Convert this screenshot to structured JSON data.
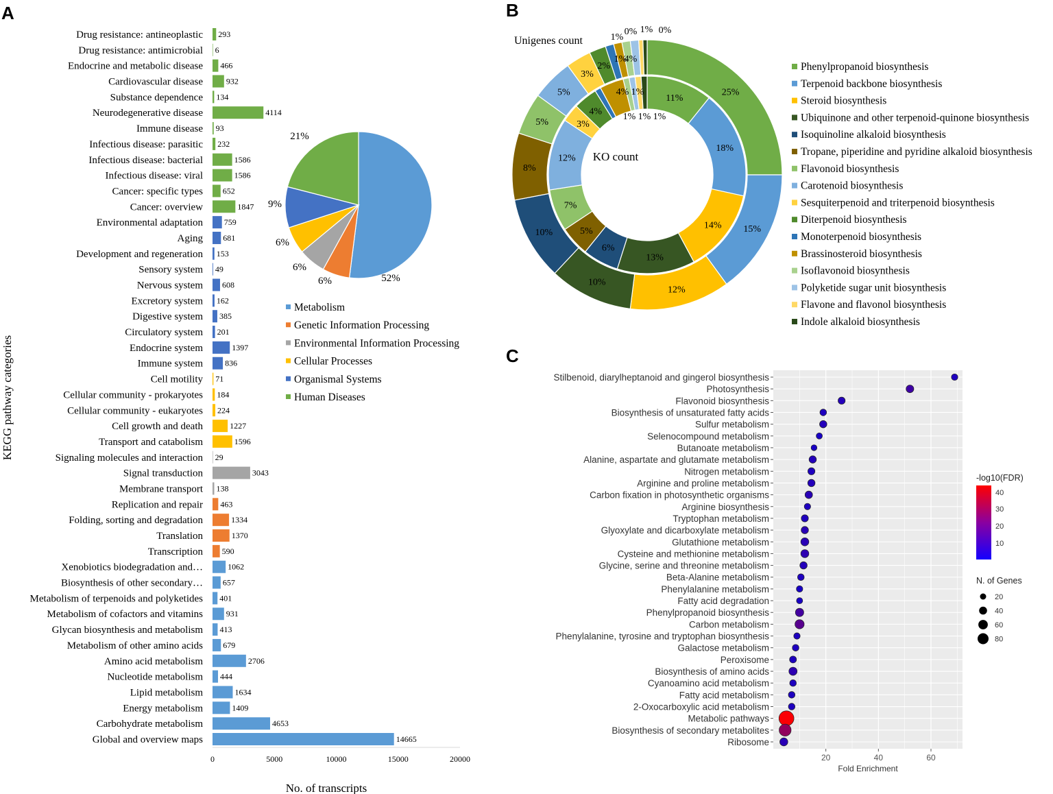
{
  "panel_labels": {
    "a": "A",
    "b": "B",
    "c": "C"
  },
  "chart_data": [
    {
      "type": "bar",
      "panel": "A",
      "orientation": "horizontal",
      "xlabel": "No. of transcripts",
      "ylabel": "KEGG pathway categories",
      "xlim": [
        0,
        20000
      ],
      "xticks": [
        "0",
        "5000",
        "10000",
        "15000",
        "20000"
      ],
      "categories": [
        {
          "label": "Drug resistance: antineoplastic",
          "value": 293,
          "group": "hd"
        },
        {
          "label": "Drug resistance: antimicrobial",
          "value": 6,
          "group": "hd"
        },
        {
          "label": "Endocrine and metabolic disease",
          "value": 466,
          "group": "hd"
        },
        {
          "label": "Cardiovascular disease",
          "value": 932,
          "group": "hd"
        },
        {
          "label": "Substance dependence",
          "value": 134,
          "group": "hd"
        },
        {
          "label": "Neurodegenerative disease",
          "value": 4114,
          "group": "hd"
        },
        {
          "label": "Immune disease",
          "value": 93,
          "group": "hd"
        },
        {
          "label": "Infectious disease: parasitic",
          "value": 232,
          "group": "hd"
        },
        {
          "label": "Infectious disease: bacterial",
          "value": 1586,
          "group": "hd"
        },
        {
          "label": "Infectious disease: viral",
          "value": 1586,
          "group": "hd"
        },
        {
          "label": "Cancer: specific types",
          "value": 652,
          "group": "hd"
        },
        {
          "label": "Cancer: overview",
          "value": 1847,
          "group": "hd"
        },
        {
          "label": "Environmental adaptation",
          "value": 759,
          "group": "os"
        },
        {
          "label": "Aging",
          "value": 681,
          "group": "os"
        },
        {
          "label": "Development and regeneration",
          "value": 153,
          "group": "os"
        },
        {
          "label": "Sensory system",
          "value": 49,
          "group": "os"
        },
        {
          "label": "Nervous system",
          "value": 608,
          "group": "os"
        },
        {
          "label": "Excretory system",
          "value": 162,
          "group": "os"
        },
        {
          "label": "Digestive system",
          "value": 385,
          "group": "os"
        },
        {
          "label": "Circulatory system",
          "value": 201,
          "group": "os"
        },
        {
          "label": "Endocrine system",
          "value": 1397,
          "group": "os"
        },
        {
          "label": "Immune system",
          "value": 836,
          "group": "os"
        },
        {
          "label": "Cell motility",
          "value": 71,
          "group": "cp"
        },
        {
          "label": "Cellular community - prokaryotes",
          "value": 184,
          "group": "cp"
        },
        {
          "label": "Cellular community - eukaryotes",
          "value": 224,
          "group": "cp"
        },
        {
          "label": "Cell growth and death",
          "value": 1227,
          "group": "cp"
        },
        {
          "label": "Transport and catabolism",
          "value": 1596,
          "group": "cp"
        },
        {
          "label": "Signaling molecules and interaction",
          "value": 29,
          "group": "eip"
        },
        {
          "label": "Signal transduction",
          "value": 3043,
          "group": "eip"
        },
        {
          "label": "Membrane transport",
          "value": 138,
          "group": "eip"
        },
        {
          "label": "Replication and repair",
          "value": 463,
          "group": "gip"
        },
        {
          "label": "Folding, sorting and degradation",
          "value": 1334,
          "group": "gip"
        },
        {
          "label": "Translation",
          "value": 1370,
          "group": "gip"
        },
        {
          "label": "Transcription",
          "value": 590,
          "group": "gip"
        },
        {
          "label": "Xenobiotics biodegradation and…",
          "value": 1062,
          "group": "met"
        },
        {
          "label": "Biosynthesis of other secondary…",
          "value": 657,
          "group": "met"
        },
        {
          "label": "Metabolism of terpenoids and polyketides",
          "value": 401,
          "group": "met"
        },
        {
          "label": "Metabolism of cofactors and vitamins",
          "value": 931,
          "group": "met"
        },
        {
          "label": "Glycan biosynthesis and metabolism",
          "value": 413,
          "group": "met"
        },
        {
          "label": "Metabolism of other amino acids",
          "value": 679,
          "group": "met"
        },
        {
          "label": "Amino acid metabolism",
          "value": 2706,
          "group": "met"
        },
        {
          "label": "Nucleotide metabolism",
          "value": 444,
          "group": "met"
        },
        {
          "label": "Lipid metabolism",
          "value": 1634,
          "group": "met"
        },
        {
          "label": "Energy metabolism",
          "value": 1409,
          "group": "met"
        },
        {
          "label": "Carbohydrate metabolism",
          "value": 4653,
          "group": "met"
        },
        {
          "label": "Global and overview maps",
          "value": 14665,
          "group": "met"
        }
      ],
      "group_colors": {
        "met": "#5b9bd5",
        "gip": "#ed7d31",
        "eip": "#a5a5a5",
        "cp": "#ffc000",
        "os": "#4472c4",
        "hd": "#70ad47"
      }
    },
    {
      "type": "pie",
      "panel": "A-inset",
      "slices": [
        {
          "label": "Metabolism",
          "value": 52,
          "text": "52%",
          "color": "#5b9bd5"
        },
        {
          "label": "Genetic Information Processing",
          "value": 6,
          "text": "6%",
          "color": "#ed7d31"
        },
        {
          "label": "Environmental Information Processing",
          "value": 6,
          "text": "6%",
          "color": "#a5a5a5"
        },
        {
          "label": "Cellular Processes",
          "value": 6,
          "text": "6%",
          "color": "#ffc000"
        },
        {
          "label": "Organismal Systems",
          "value": 9,
          "text": "9%",
          "color": "#4472c4"
        },
        {
          "label": "Human Diseases",
          "value": 21,
          "text": "21%",
          "color": "#70ad47"
        }
      ]
    },
    {
      "type": "pie",
      "subtype": "double-donut",
      "panel": "B",
      "outer_title": "Unigenes count",
      "inner_title": "KO count",
      "legend": [
        {
          "label": "Phenylpropanoid biosynthesis",
          "color": "#70ad47"
        },
        {
          "label": "Terpenoid backbone biosynthesis",
          "color": "#5b9bd5"
        },
        {
          "label": "Steroid biosynthesis",
          "color": "#ffc000"
        },
        {
          "label": "Ubiquinone and other terpenoid-quinone biosynthesis",
          "color": "#375623"
        },
        {
          "label": "Isoquinoline alkaloid biosynthesis",
          "color": "#1f4e79"
        },
        {
          "label": "Tropane, piperidine and pyridine alkaloid biosynthesis",
          "color": "#7f6000"
        },
        {
          "label": "Flavonoid biosynthesis",
          "color": "#8fc269"
        },
        {
          "label": "Carotenoid biosynthesis",
          "color": "#7fb0de"
        },
        {
          "label": "Sesquiterpenoid and triterpenoid biosynthesis",
          "color": "#ffd23f"
        },
        {
          "label": "Diterpenoid biosynthesis",
          "color": "#4f8a2c"
        },
        {
          "label": "Monoterpenoid biosynthesis",
          "color": "#2e75b6"
        },
        {
          "label": "Brassinosteroid biosynthesis",
          "color": "#bf9000"
        },
        {
          "label": "Isoflavonoid biosynthesis",
          "color": "#a9d18e"
        },
        {
          "label": "Polyketide sugar unit biosynthesis",
          "color": "#9dc3e6"
        },
        {
          "label": "Flavone and flavonol biosynthesis",
          "color": "#ffd966"
        },
        {
          "label": "Indole alkaloid biosynthesis",
          "color": "#2a4a1a"
        }
      ],
      "outer_values": [
        25,
        15,
        12,
        10,
        10,
        8,
        5,
        5,
        3,
        2,
        1,
        1,
        1,
        1,
        0.5,
        0.5
      ],
      "outer_texts": [
        "25%",
        "15%",
        "12%",
        "10%",
        "10%",
        "8%",
        "5%",
        "5%",
        "3%",
        "2%",
        "1%",
        "1%",
        "1%",
        "1%",
        "0%",
        "0%"
      ],
      "inner_values": [
        11,
        18,
        14,
        13,
        6,
        5,
        7,
        12,
        3,
        4,
        1,
        4,
        1,
        1,
        1,
        1
      ],
      "inner_texts": [
        "11%",
        "18%",
        "14%",
        "13%",
        "6%",
        "5%",
        "7%",
        "12%",
        "3%",
        "4%",
        "1%",
        "4%",
        "1%",
        "1%",
        "1%",
        "1%"
      ],
      "extra_labels": [
        "1%",
        "0%",
        "1%",
        "0%",
        "1%",
        "1%",
        "1%"
      ]
    },
    {
      "type": "scatter",
      "panel": "C",
      "xlabel": "Fold Enrichment",
      "xlim": [
        0,
        72
      ],
      "xticks": [
        20,
        40,
        60
      ],
      "color_legend": {
        "title": "-log10(FDR)",
        "ticks": [
          "40",
          "30",
          "20",
          "10"
        ],
        "min": 0,
        "max": 45
      },
      "size_legend": {
        "title": "N. of Genes",
        "values": [
          "20",
          "40",
          "60",
          "80"
        ]
      },
      "points": [
        {
          "label": "Stilbenoid, diarylheptanoid and gingerol biosynthesis",
          "fe": 69,
          "genes": 6,
          "fdr": 2
        },
        {
          "label": "Photosynthesis",
          "fe": 52,
          "genes": 12,
          "fdr": 8
        },
        {
          "label": "Flavonoid biosynthesis",
          "fe": 26,
          "genes": 9,
          "fdr": 3
        },
        {
          "label": "Biosynthesis of unsaturated fatty acids",
          "fe": 19,
          "genes": 7,
          "fdr": 2
        },
        {
          "label": "Sulfur metabolism",
          "fe": 19,
          "genes": 10,
          "fdr": 3
        },
        {
          "label": "Selenocompound metabolism",
          "fe": 17.5,
          "genes": 5,
          "fdr": 1
        },
        {
          "label": "Butanoate metabolism",
          "fe": 15.5,
          "genes": 4,
          "fdr": 1
        },
        {
          "label": "Alanine, aspartate and glutamate metabolism",
          "fe": 15,
          "genes": 10,
          "fdr": 3
        },
        {
          "label": "Nitrogen metabolism",
          "fe": 14.5,
          "genes": 9,
          "fdr": 2
        },
        {
          "label": "Arginine and proline metabolism",
          "fe": 14.5,
          "genes": 10,
          "fdr": 3
        },
        {
          "label": "Carbon fixation in photosynthetic organisms",
          "fe": 13.5,
          "genes": 11,
          "fdr": 4
        },
        {
          "label": "Arginine biosynthesis",
          "fe": 13,
          "genes": 6,
          "fdr": 2
        },
        {
          "label": "Tryptophan metabolism",
          "fe": 12,
          "genes": 9,
          "fdr": 2
        },
        {
          "label": "Glyoxylate and dicarboxylate metabolism",
          "fe": 12,
          "genes": 10,
          "fdr": 4
        },
        {
          "label": "Glutathione metabolism",
          "fe": 12,
          "genes": 14,
          "fdr": 4
        },
        {
          "label": "Cysteine and methionine metabolism",
          "fe": 12,
          "genes": 14,
          "fdr": 5
        },
        {
          "label": "Glycine, serine and threonine metabolism",
          "fe": 11.5,
          "genes": 10,
          "fdr": 3
        },
        {
          "label": "Beta-Alanine metabolism",
          "fe": 10.5,
          "genes": 7,
          "fdr": 2
        },
        {
          "label": "Phenylalanine metabolism",
          "fe": 10,
          "genes": 6,
          "fdr": 1
        },
        {
          "label": "Fatty acid degradation",
          "fe": 10,
          "genes": 5,
          "fdr": 1
        },
        {
          "label": "Phenylpropanoid biosynthesis",
          "fe": 10,
          "genes": 16,
          "fdr": 9
        },
        {
          "label": "Carbon metabolism",
          "fe": 10,
          "genes": 22,
          "fdr": 13
        },
        {
          "label": "Phenylalanine, tyrosine and tryptophan biosynthesis",
          "fe": 9,
          "genes": 6,
          "fdr": 2
        },
        {
          "label": "Galactose metabolism",
          "fe": 8.5,
          "genes": 7,
          "fdr": 2
        },
        {
          "label": "Peroxisome",
          "fe": 7.5,
          "genes": 8,
          "fdr": 2
        },
        {
          "label": "Biosynthesis of amino acids",
          "fe": 7.5,
          "genes": 15,
          "fdr": 5
        },
        {
          "label": "Cyanoamino acid metabolism",
          "fe": 7.5,
          "genes": 7,
          "fdr": 2
        },
        {
          "label": "Fatty acid metabolism",
          "fe": 7,
          "genes": 7,
          "fdr": 2
        },
        {
          "label": "2-Oxocarboxylic acid metabolism",
          "fe": 7,
          "genes": 7,
          "fdr": 2
        },
        {
          "label": "Metabolic pathways",
          "fe": 5,
          "genes": 88,
          "fdr": 44
        },
        {
          "label": "Biosynthesis of secondary metabolites",
          "fe": 4.5,
          "genes": 48,
          "fdr": 24
        },
        {
          "label": "Ribosome",
          "fe": 4,
          "genes": 14,
          "fdr": 4
        }
      ]
    }
  ]
}
